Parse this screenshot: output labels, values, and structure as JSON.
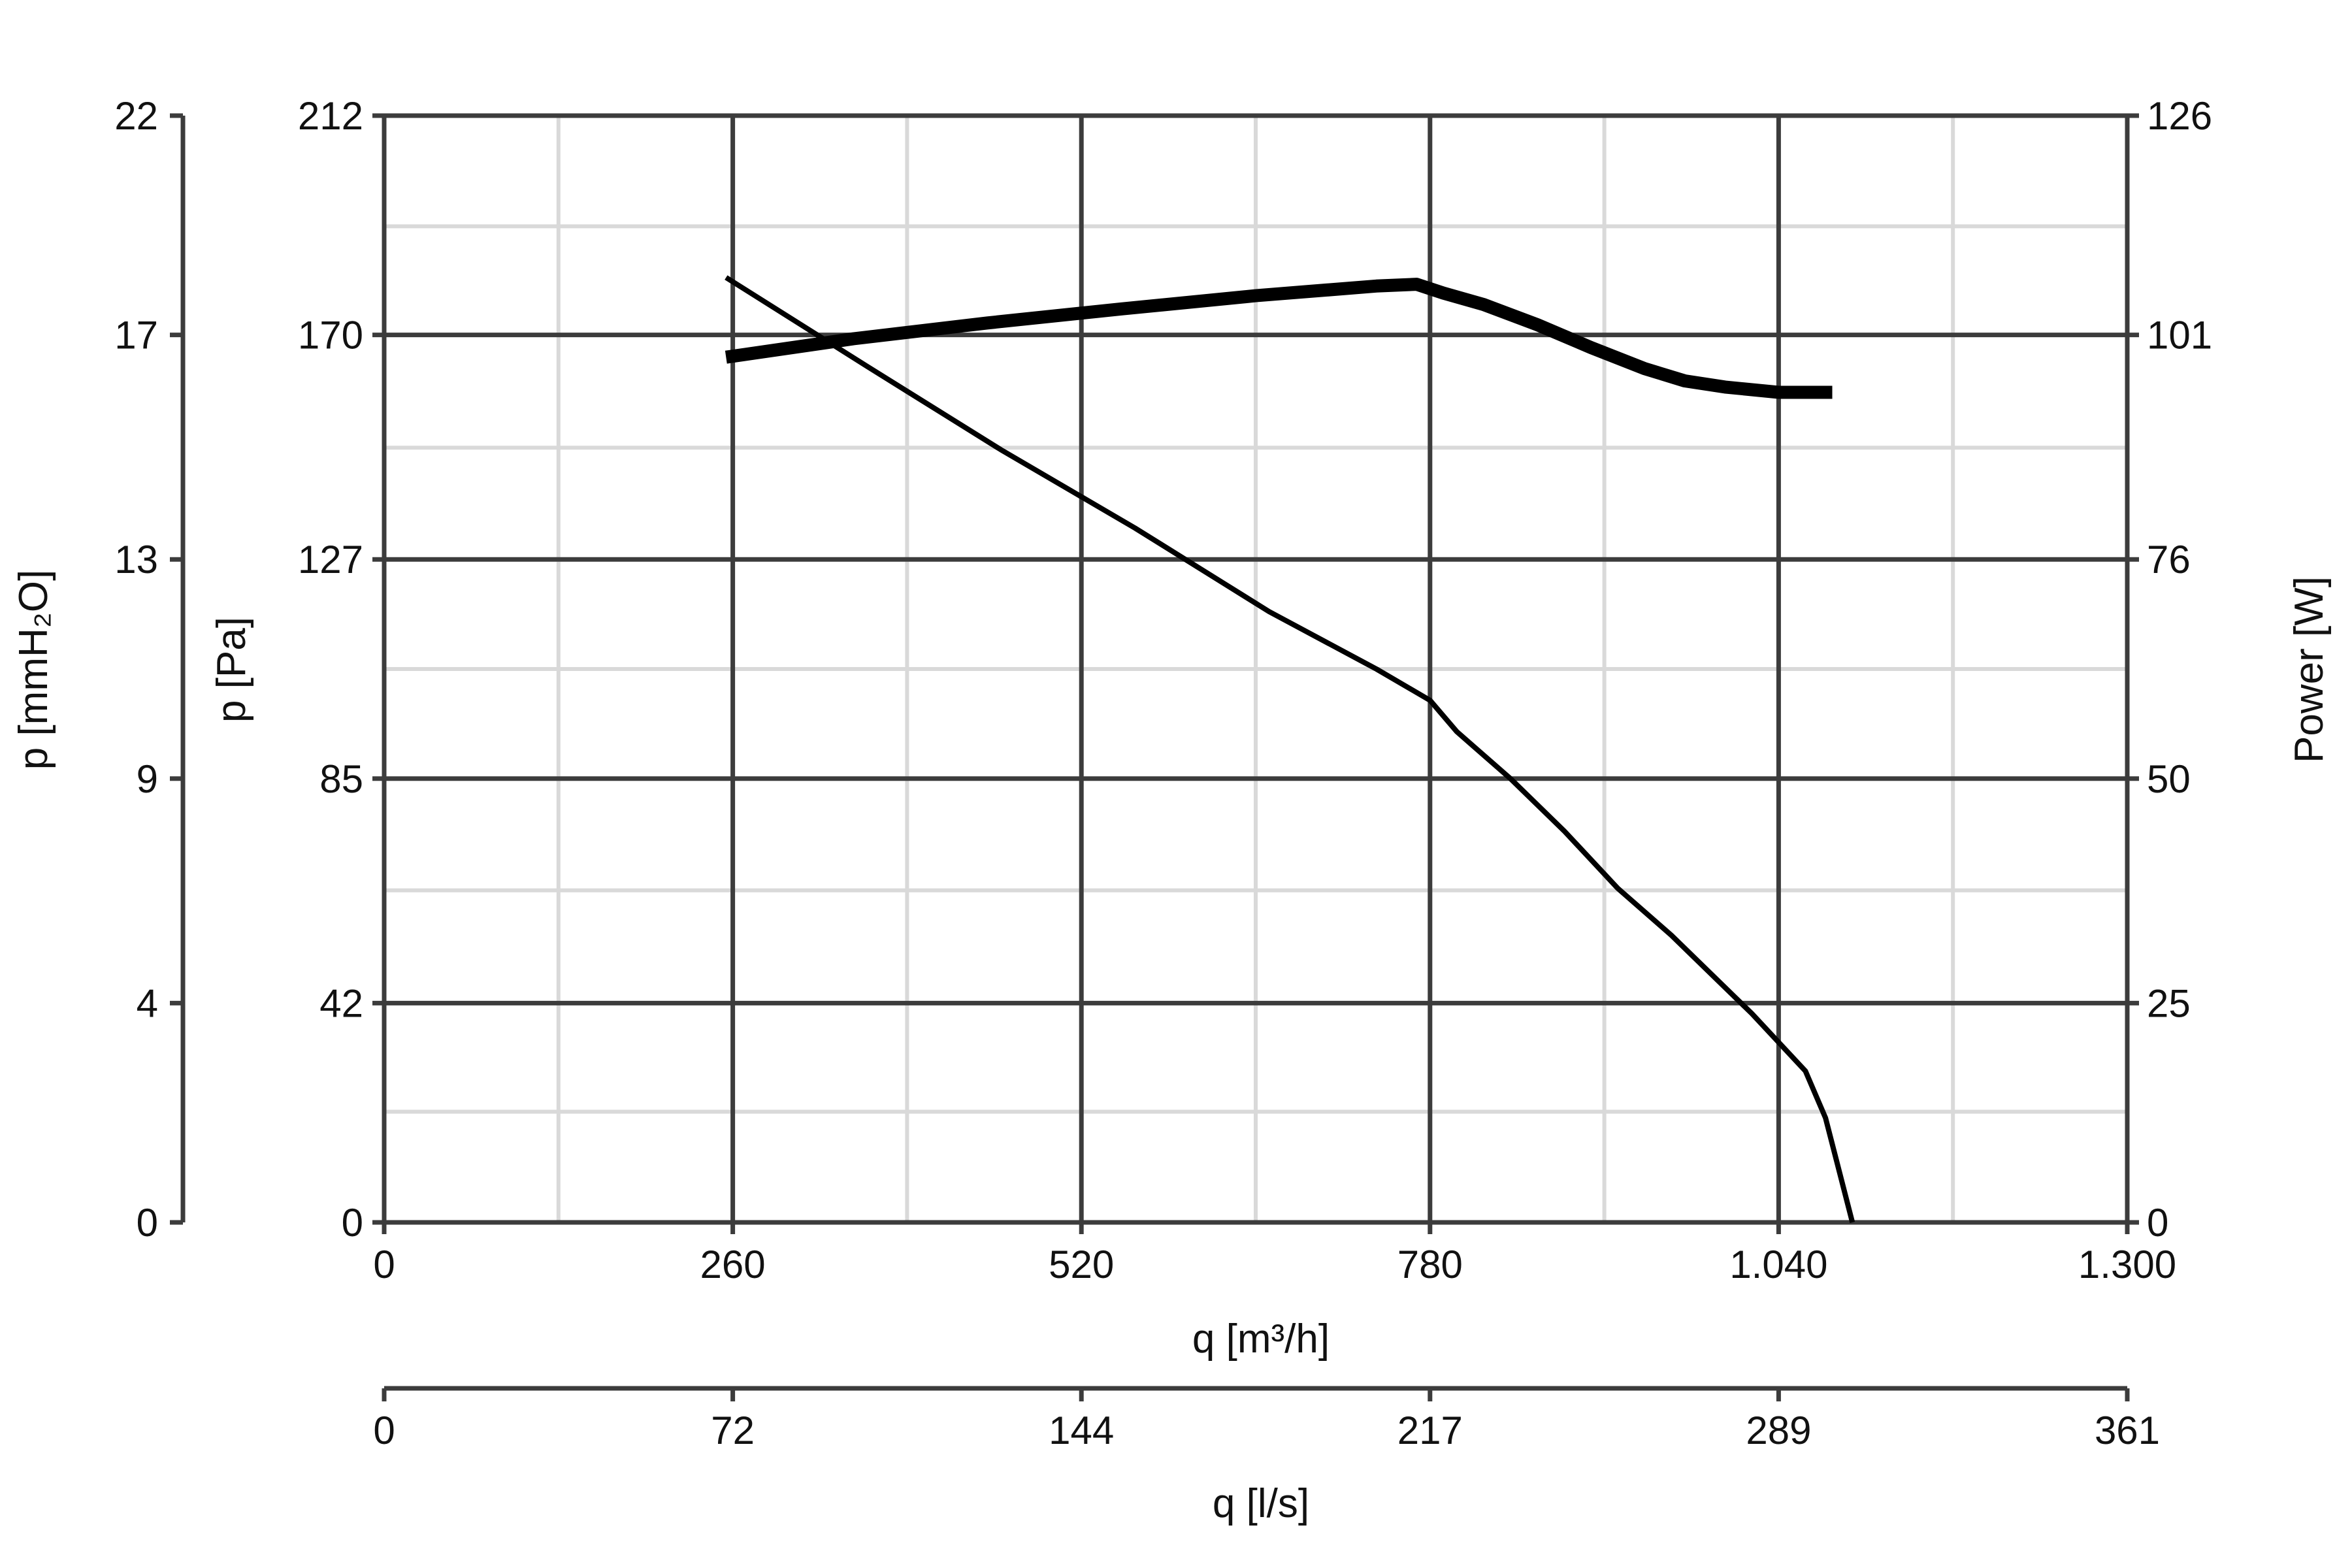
{
  "chart_data": {
    "type": "line",
    "title": "",
    "x_axis": {
      "label": "q [m³/h]",
      "range": [
        0,
        1300
      ],
      "ticks": [
        0,
        260,
        520,
        780,
        1040,
        1300
      ],
      "tick_labels": [
        "0",
        "260",
        "520",
        "780",
        "1.040",
        "1.300"
      ]
    },
    "x2_axis": {
      "label": "q [l/s]",
      "range": [
        0,
        361
      ],
      "tick_labels": [
        "0",
        "72",
        "144",
        "217",
        "289",
        "361"
      ]
    },
    "y_axis": {
      "label": "p [Pa]",
      "range": [
        0,
        212
      ],
      "ticks": [
        0,
        42,
        85,
        127,
        170,
        212
      ],
      "tick_labels": [
        "0",
        "42",
        "85",
        "127",
        "170",
        "212"
      ]
    },
    "y_outer_axis": {
      "label": "p [mmH₂O]",
      "range": [
        0,
        22
      ],
      "tick_labels": [
        "0",
        "4",
        "9",
        "13",
        "17",
        "22"
      ]
    },
    "y2_axis": {
      "label": "Power [W]",
      "range": [
        0,
        126
      ],
      "tick_labels": [
        "0",
        "25",
        "50",
        "76",
        "101",
        "126"
      ]
    },
    "grid": true,
    "series": [
      {
        "role": "pressure",
        "axis": "y",
        "color": "#000000",
        "x": [
          255,
          360,
          460,
          560,
          660,
          740,
          780,
          800,
          840,
          880,
          920,
          960,
          980,
          1020,
          1060,
          1075,
          1095
        ],
        "y": [
          181,
          164,
          148,
          133,
          117,
          106,
          100,
          94,
          85,
          75,
          64,
          55,
          50,
          40,
          29,
          20,
          0
        ]
      },
      {
        "role": "power",
        "axis": "y2",
        "color": "#000000",
        "x": [
          255,
          350,
          450,
          550,
          650,
          740,
          770,
          790,
          820,
          860,
          900,
          940,
          970,
          1000,
          1040,
          1080
        ],
        "y": [
          98.5,
          100.6,
          102.4,
          104.0,
          105.5,
          106.6,
          106.8,
          105.8,
          104.5,
          102.2,
          99.6,
          97.2,
          95.8,
          95.1,
          94.5,
          94.5
        ]
      }
    ]
  }
}
